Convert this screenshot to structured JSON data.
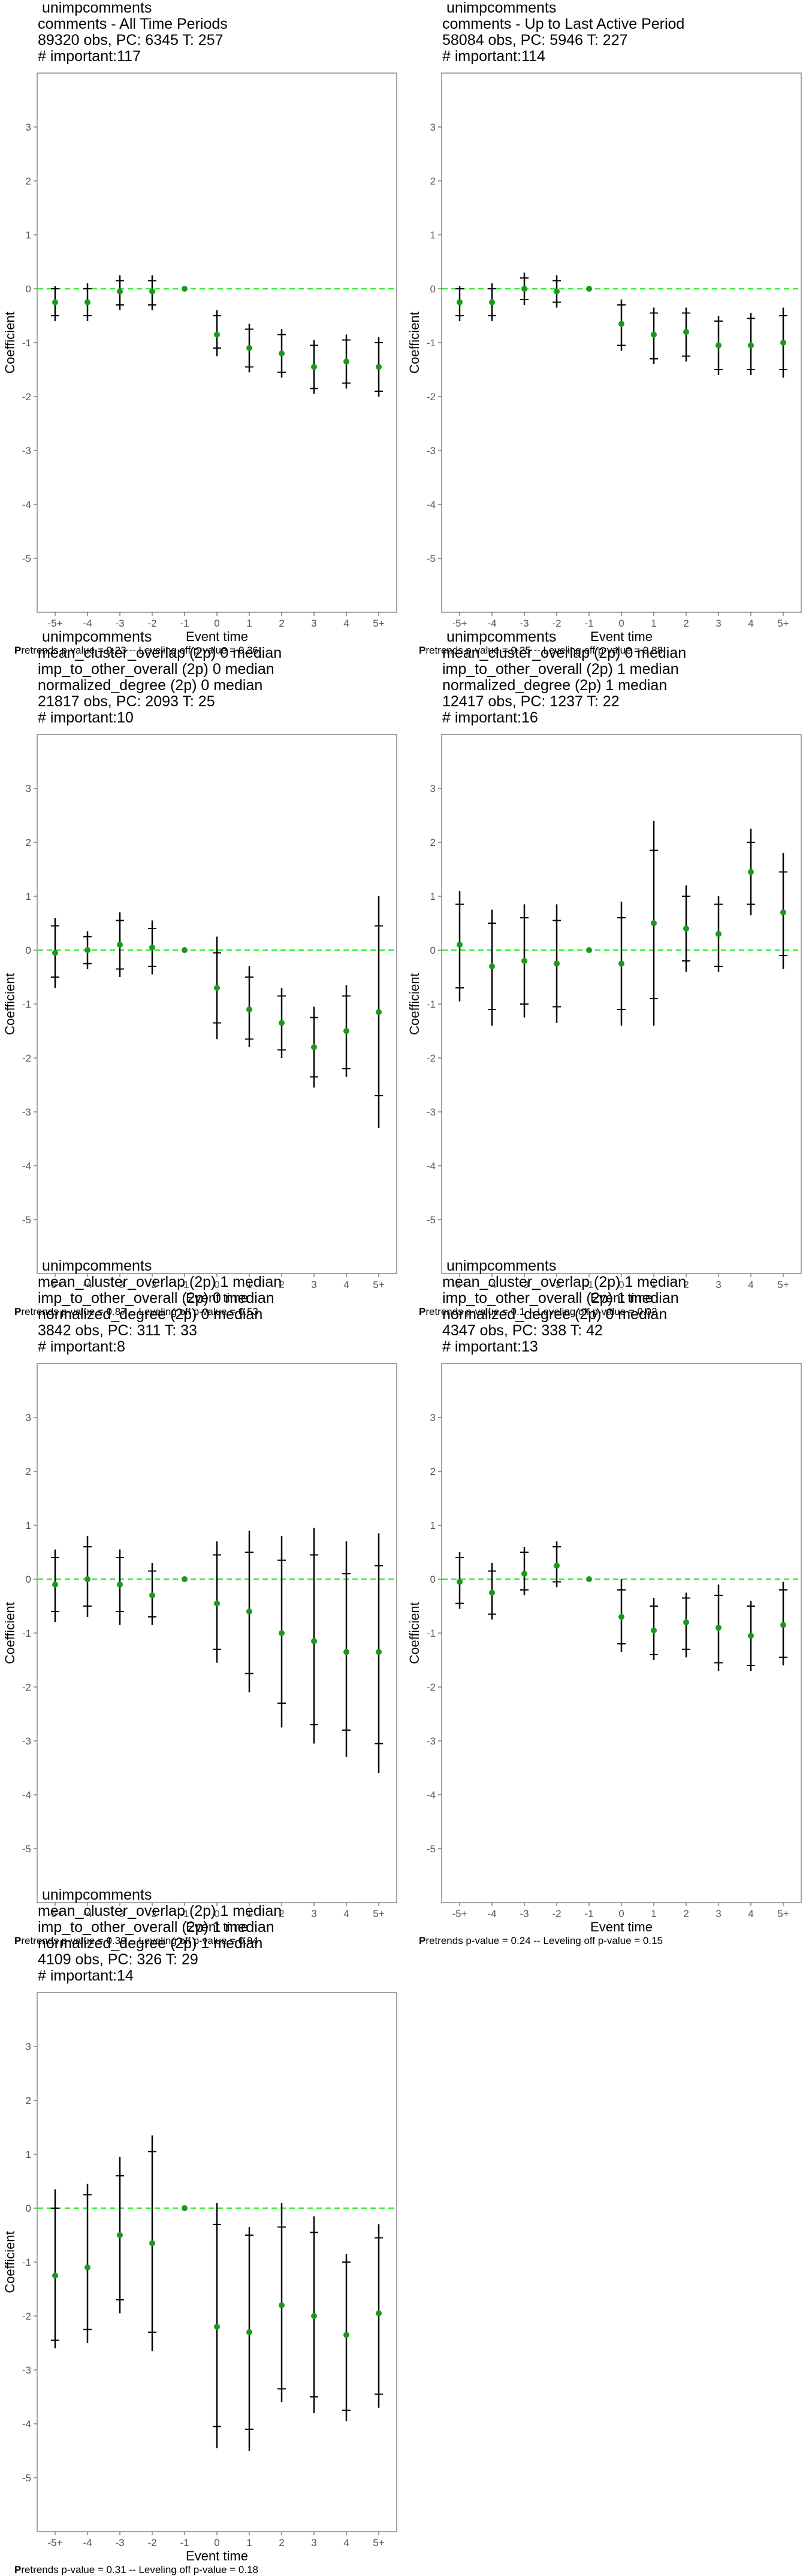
{
  "common": {
    "xlabel": "Event time",
    "ylabel": "Coefficient",
    "xticks": [
      "-5+",
      "-4",
      "-3",
      "-2",
      "-1",
      "0",
      "1",
      "2",
      "3",
      "4",
      "5+"
    ],
    "yticks": [
      "3",
      "2",
      "1",
      "0",
      "-1",
      "-2",
      "-3",
      "-4",
      "-5"
    ],
    "colors": {
      "point": "#1a9a1a",
      "zero_line": "#33ee33",
      "bars": "#000000",
      "frame": "#888888"
    }
  },
  "chart_data": [
    {
      "type": "scatter",
      "title_lines": [
        "unimpcomments",
        "comments - All Time Periods",
        "89320 obs, PC: 6345 T: 257",
        "# important:117"
      ],
      "footer_bold": "P",
      "footer": "retrends p-value = 0.23 -- Leveling off p-value = 0.36",
      "ylim": [
        -6,
        4
      ],
      "x": [
        "-5+",
        "-4",
        "-3",
        "-2",
        "-1",
        "0",
        "1",
        "2",
        "3",
        "4",
        "5+"
      ],
      "y": [
        -0.25,
        -0.25,
        -0.05,
        -0.05,
        0,
        -0.85,
        -1.1,
        -1.2,
        -1.45,
        -1.35,
        -1.45
      ],
      "ci_outer": [
        [
          -0.6,
          0.05
        ],
        [
          -0.6,
          0.1
        ],
        [
          -0.4,
          0.25
        ],
        [
          -0.4,
          0.25
        ],
        [
          0,
          0
        ],
        [
          -1.25,
          -0.4
        ],
        [
          -1.55,
          -0.65
        ],
        [
          -1.65,
          -0.75
        ],
        [
          -1.95,
          -0.95
        ],
        [
          -1.85,
          -0.85
        ],
        [
          -2.0,
          -0.9
        ]
      ],
      "ci_inner": [
        [
          -0.5,
          0.0
        ],
        [
          -0.5,
          0.0
        ],
        [
          -0.3,
          0.15
        ],
        [
          -0.3,
          0.15
        ],
        [
          0,
          0
        ],
        [
          -1.1,
          -0.5
        ],
        [
          -1.45,
          -0.75
        ],
        [
          -1.55,
          -0.85
        ],
        [
          -1.85,
          -1.05
        ],
        [
          -1.75,
          -0.95
        ],
        [
          -1.9,
          -1.0
        ]
      ]
    },
    {
      "type": "scatter",
      "title_lines": [
        "unimpcomments",
        "comments - Up to Last Active Period",
        "58084 obs, PC: 5946 T: 227",
        "# important:114"
      ],
      "footer_bold": "P",
      "footer": "retrends p-value = 0.25 -- Leveling off p-value = 0.88",
      "ylim": [
        -6,
        4
      ],
      "x": [
        "-5+",
        "-4",
        "-3",
        "-2",
        "-1",
        "0",
        "1",
        "2",
        "3",
        "4",
        "5+"
      ],
      "y": [
        -0.25,
        -0.25,
        0.0,
        -0.05,
        0,
        -0.65,
        -0.85,
        -0.8,
        -1.05,
        -1.05,
        -1.0
      ],
      "ci_outer": [
        [
          -0.6,
          0.05
        ],
        [
          -0.6,
          0.1
        ],
        [
          -0.3,
          0.3
        ],
        [
          -0.35,
          0.25
        ],
        [
          0,
          0
        ],
        [
          -1.15,
          -0.2
        ],
        [
          -1.4,
          -0.35
        ],
        [
          -1.35,
          -0.35
        ],
        [
          -1.6,
          -0.5
        ],
        [
          -1.6,
          -0.45
        ],
        [
          -1.65,
          -0.35
        ]
      ],
      "ci_inner": [
        [
          -0.5,
          0.0
        ],
        [
          -0.5,
          0.0
        ],
        [
          -0.2,
          0.2
        ],
        [
          -0.25,
          0.15
        ],
        [
          0,
          0
        ],
        [
          -1.05,
          -0.3
        ],
        [
          -1.3,
          -0.45
        ],
        [
          -1.25,
          -0.45
        ],
        [
          -1.5,
          -0.6
        ],
        [
          -1.5,
          -0.55
        ],
        [
          -1.5,
          -0.5
        ]
      ]
    },
    {
      "type": "scatter",
      "title_lines": [
        "unimpcomments",
        "mean_cluster_overlap (2p) 0 median",
        "imp_to_other_overall (2p) 0 median",
        "normalized_degree (2p) 0 median",
        "21817 obs, PC: 2093 T: 25",
        "# important:10"
      ],
      "footer_bold": "P",
      "footer": "retrends p-value = 0.87 -- Leveling off p-value = 0.53",
      "ylim": [
        -6,
        4
      ],
      "x": [
        "-5+",
        "-4",
        "-3",
        "-2",
        "-1",
        "0",
        "1",
        "2",
        "3",
        "4",
        "5+"
      ],
      "y": [
        -0.05,
        0.0,
        0.1,
        0.05,
        0,
        -0.7,
        -1.1,
        -1.35,
        -1.8,
        -1.5,
        -1.15
      ],
      "ci_outer": [
        [
          -0.7,
          0.6
        ],
        [
          -0.35,
          0.35
        ],
        [
          -0.5,
          0.7
        ],
        [
          -0.45,
          0.55
        ],
        [
          0,
          0
        ],
        [
          -1.65,
          0.25
        ],
        [
          -1.8,
          -0.3
        ],
        [
          -2.0,
          -0.7
        ],
        [
          -2.55,
          -1.05
        ],
        [
          -2.35,
          -0.65
        ],
        [
          -3.3,
          1.0
        ]
      ],
      "ci_inner": [
        [
          -0.5,
          0.45
        ],
        [
          -0.25,
          0.25
        ],
        [
          -0.35,
          0.55
        ],
        [
          -0.3,
          0.4
        ],
        [
          0,
          0
        ],
        [
          -1.35,
          -0.05
        ],
        [
          -1.65,
          -0.5
        ],
        [
          -1.85,
          -0.85
        ],
        [
          -2.35,
          -1.25
        ],
        [
          -2.2,
          -0.85
        ],
        [
          -2.7,
          0.45
        ]
      ]
    },
    {
      "type": "scatter",
      "title_lines": [
        "unimpcomments",
        "mean_cluster_overlap (2p) 0 median",
        "imp_to_other_overall (2p) 1 median",
        "normalized_degree (2p) 1 median",
        "12417 obs, PC: 1237 T: 22",
        "# important:16"
      ],
      "footer_bold": "P",
      "footer": "retrends p-value = 0.1 -- Leveling off p-value = 0.02",
      "ylim": [
        -6,
        4
      ],
      "x": [
        "-5+",
        "-4",
        "-3",
        "-2",
        "-1",
        "0",
        "1",
        "2",
        "3",
        "4",
        "5+"
      ],
      "y": [
        0.1,
        -0.3,
        -0.2,
        -0.25,
        0,
        -0.25,
        0.5,
        0.4,
        0.3,
        1.45,
        0.7
      ],
      "ci_outer": [
        [
          -0.95,
          1.1
        ],
        [
          -1.4,
          0.75
        ],
        [
          -1.25,
          0.85
        ],
        [
          -1.35,
          0.85
        ],
        [
          0,
          0
        ],
        [
          -1.4,
          0.9
        ],
        [
          -1.4,
          2.4
        ],
        [
          -0.4,
          1.2
        ],
        [
          -0.4,
          1.0
        ],
        [
          0.65,
          2.25
        ],
        [
          -0.35,
          1.8
        ]
      ],
      "ci_inner": [
        [
          -0.7,
          0.85
        ],
        [
          -1.1,
          0.5
        ],
        [
          -1.0,
          0.6
        ],
        [
          -1.05,
          0.55
        ],
        [
          0,
          0
        ],
        [
          -1.1,
          0.6
        ],
        [
          -0.9,
          1.85
        ],
        [
          -0.2,
          1.0
        ],
        [
          -0.3,
          0.85
        ],
        [
          0.85,
          2.0
        ],
        [
          -0.1,
          1.45
        ]
      ]
    },
    {
      "type": "scatter",
      "title_lines": [
        "unimpcomments",
        "mean_cluster_overlap (2p) 1 median",
        "imp_to_other_overall (2p) 0 median",
        "normalized_degree (2p) 0 median",
        "3842 obs, PC: 311 T: 33",
        "# important:8"
      ],
      "footer_bold": "P",
      "footer": "retrends p-value = 0.39 -- Leveling off p-value = 0.94",
      "ylim": [
        -6,
        4
      ],
      "x": [
        "-5+",
        "-4",
        "-3",
        "-2",
        "-1",
        "0",
        "1",
        "2",
        "3",
        "4",
        "5+"
      ],
      "y": [
        -0.1,
        0.0,
        -0.1,
        -0.3,
        0,
        -0.45,
        -0.6,
        -1.0,
        -1.15,
        -1.35,
        -1.35
      ],
      "ci_outer": [
        [
          -0.8,
          0.55
        ],
        [
          -0.7,
          0.8
        ],
        [
          -0.85,
          0.55
        ],
        [
          -0.85,
          0.3
        ],
        [
          0,
          0
        ],
        [
          -1.55,
          0.7
        ],
        [
          -2.1,
          0.9
        ],
        [
          -2.75,
          0.8
        ],
        [
          -3.05,
          0.95
        ],
        [
          -3.3,
          0.7
        ],
        [
          -3.6,
          0.85
        ]
      ],
      "ci_inner": [
        [
          -0.6,
          0.4
        ],
        [
          -0.5,
          0.6
        ],
        [
          -0.6,
          0.4
        ],
        [
          -0.7,
          0.15
        ],
        [
          0,
          0
        ],
        [
          -1.3,
          0.45
        ],
        [
          -1.75,
          0.5
        ],
        [
          -2.3,
          0.35
        ],
        [
          -2.7,
          0.45
        ],
        [
          -2.8,
          0.1
        ],
        [
          -3.05,
          0.25
        ]
      ]
    },
    {
      "type": "scatter",
      "title_lines": [
        "unimpcomments",
        "mean_cluster_overlap (2p) 1 median",
        "imp_to_other_overall (2p) 1 median",
        "normalized_degree (2p) 0 median",
        "4347 obs, PC: 338 T: 42",
        "# important:13"
      ],
      "footer_bold": "P",
      "footer": "retrends p-value = 0.24 -- Leveling off p-value = 0.15",
      "ylim": [
        -6,
        4
      ],
      "x": [
        "-5+",
        "-4",
        "-3",
        "-2",
        "-1",
        "0",
        "1",
        "2",
        "3",
        "4",
        "5+"
      ],
      "y": [
        -0.05,
        -0.25,
        0.1,
        0.25,
        0,
        -0.7,
        -0.95,
        -0.8,
        -0.9,
        -1.05,
        -0.85
      ],
      "ci_outer": [
        [
          -0.55,
          0.5
        ],
        [
          -0.75,
          0.3
        ],
        [
          -0.3,
          0.6
        ],
        [
          -0.15,
          0.7
        ],
        [
          0,
          0
        ],
        [
          -1.35,
          0.0
        ],
        [
          -1.5,
          -0.35
        ],
        [
          -1.45,
          -0.25
        ],
        [
          -1.7,
          -0.1
        ],
        [
          -1.7,
          -0.4
        ],
        [
          -1.6,
          -0.05
        ]
      ],
      "ci_inner": [
        [
          -0.45,
          0.4
        ],
        [
          -0.65,
          0.15
        ],
        [
          -0.2,
          0.5
        ],
        [
          -0.05,
          0.6
        ],
        [
          0,
          0
        ],
        [
          -1.2,
          -0.2
        ],
        [
          -1.4,
          -0.5
        ],
        [
          -1.3,
          -0.35
        ],
        [
          -1.55,
          -0.3
        ],
        [
          -1.6,
          -0.5
        ],
        [
          -1.45,
          -0.2
        ]
      ]
    },
    {
      "type": "scatter",
      "title_lines": [
        "unimpcomments",
        "mean_cluster_overlap (2p) 1 median",
        "imp_to_other_overall (2p) 1 median",
        "normalized_degree (2p) 1 median",
        "4109 obs, PC: 326 T: 29",
        "# important:14"
      ],
      "footer_bold": "P",
      "footer": "retrends p-value = 0.31 -- Leveling off p-value = 0.18",
      "ylim": [
        -6,
        4
      ],
      "x": [
        "-5+",
        "-4",
        "-3",
        "-2",
        "-1",
        "0",
        "1",
        "2",
        "3",
        "4",
        "5+"
      ],
      "y": [
        -1.25,
        -1.1,
        -0.5,
        -0.65,
        0,
        -2.2,
        -2.3,
        -1.8,
        -2.0,
        -2.35,
        -1.95
      ],
      "ci_outer": [
        [
          -2.6,
          0.35
        ],
        [
          -2.5,
          0.45
        ],
        [
          -1.95,
          0.95
        ],
        [
          -2.65,
          1.35
        ],
        [
          0,
          0
        ],
        [
          -4.45,
          0.1
        ],
        [
          -4.5,
          -0.35
        ],
        [
          -3.6,
          0.1
        ],
        [
          -3.8,
          -0.15
        ],
        [
          -3.95,
          -0.85
        ],
        [
          -3.7,
          -0.3
        ]
      ],
      "ci_inner": [
        [
          -2.45,
          0.0
        ],
        [
          -2.25,
          0.25
        ],
        [
          -1.7,
          0.6
        ],
        [
          -2.3,
          1.05
        ],
        [
          0,
          0
        ],
        [
          -4.05,
          -0.3
        ],
        [
          -4.1,
          -0.5
        ],
        [
          -3.35,
          -0.35
        ],
        [
          -3.5,
          -0.45
        ],
        [
          -3.75,
          -1.0
        ],
        [
          -3.45,
          -0.55
        ]
      ]
    }
  ]
}
